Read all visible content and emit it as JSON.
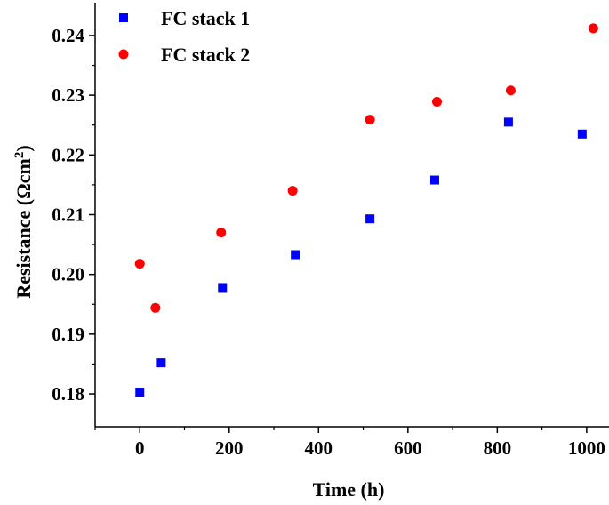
{
  "chart_data": {
    "type": "scatter",
    "xlabel": "Time (h)",
    "ylabel": "Resistance (Ωcm²)",
    "ylabel_parts": {
      "prefix": "Resistance (Ωcm",
      "sup": "2",
      "suffix": ")"
    },
    "xlim": [
      -100,
      1050
    ],
    "ylim": [
      0.1745,
      0.2455
    ],
    "xticks": [
      0,
      200,
      400,
      600,
      800,
      1000
    ],
    "xtick_labels": [
      "0",
      "200",
      "400",
      "600",
      "800",
      "1000"
    ],
    "yticks": [
      0.18,
      0.19,
      0.2,
      0.21,
      0.22,
      0.23,
      0.24
    ],
    "ytick_labels": [
      "0.18",
      "0.19",
      "0.20",
      "0.21",
      "0.22",
      "0.23",
      "0.24"
    ],
    "grid": false,
    "legend_position": "top-left",
    "series": [
      {
        "name": "FC stack 1",
        "marker": "square",
        "color": "#0000ff",
        "x": [
          0,
          48,
          185,
          348,
          515,
          660,
          825,
          990
        ],
        "y": [
          0.1803,
          0.1852,
          0.1978,
          0.2033,
          0.2093,
          0.2158,
          0.2255,
          0.2235
        ]
      },
      {
        "name": "FC stack 2",
        "marker": "circle",
        "color": "#ff0000",
        "x": [
          0,
          35,
          182,
          342,
          515,
          665,
          830,
          1015
        ],
        "y": [
          0.2018,
          0.1944,
          0.207,
          0.214,
          0.2259,
          0.2289,
          0.2308,
          0.2412
        ]
      }
    ]
  }
}
